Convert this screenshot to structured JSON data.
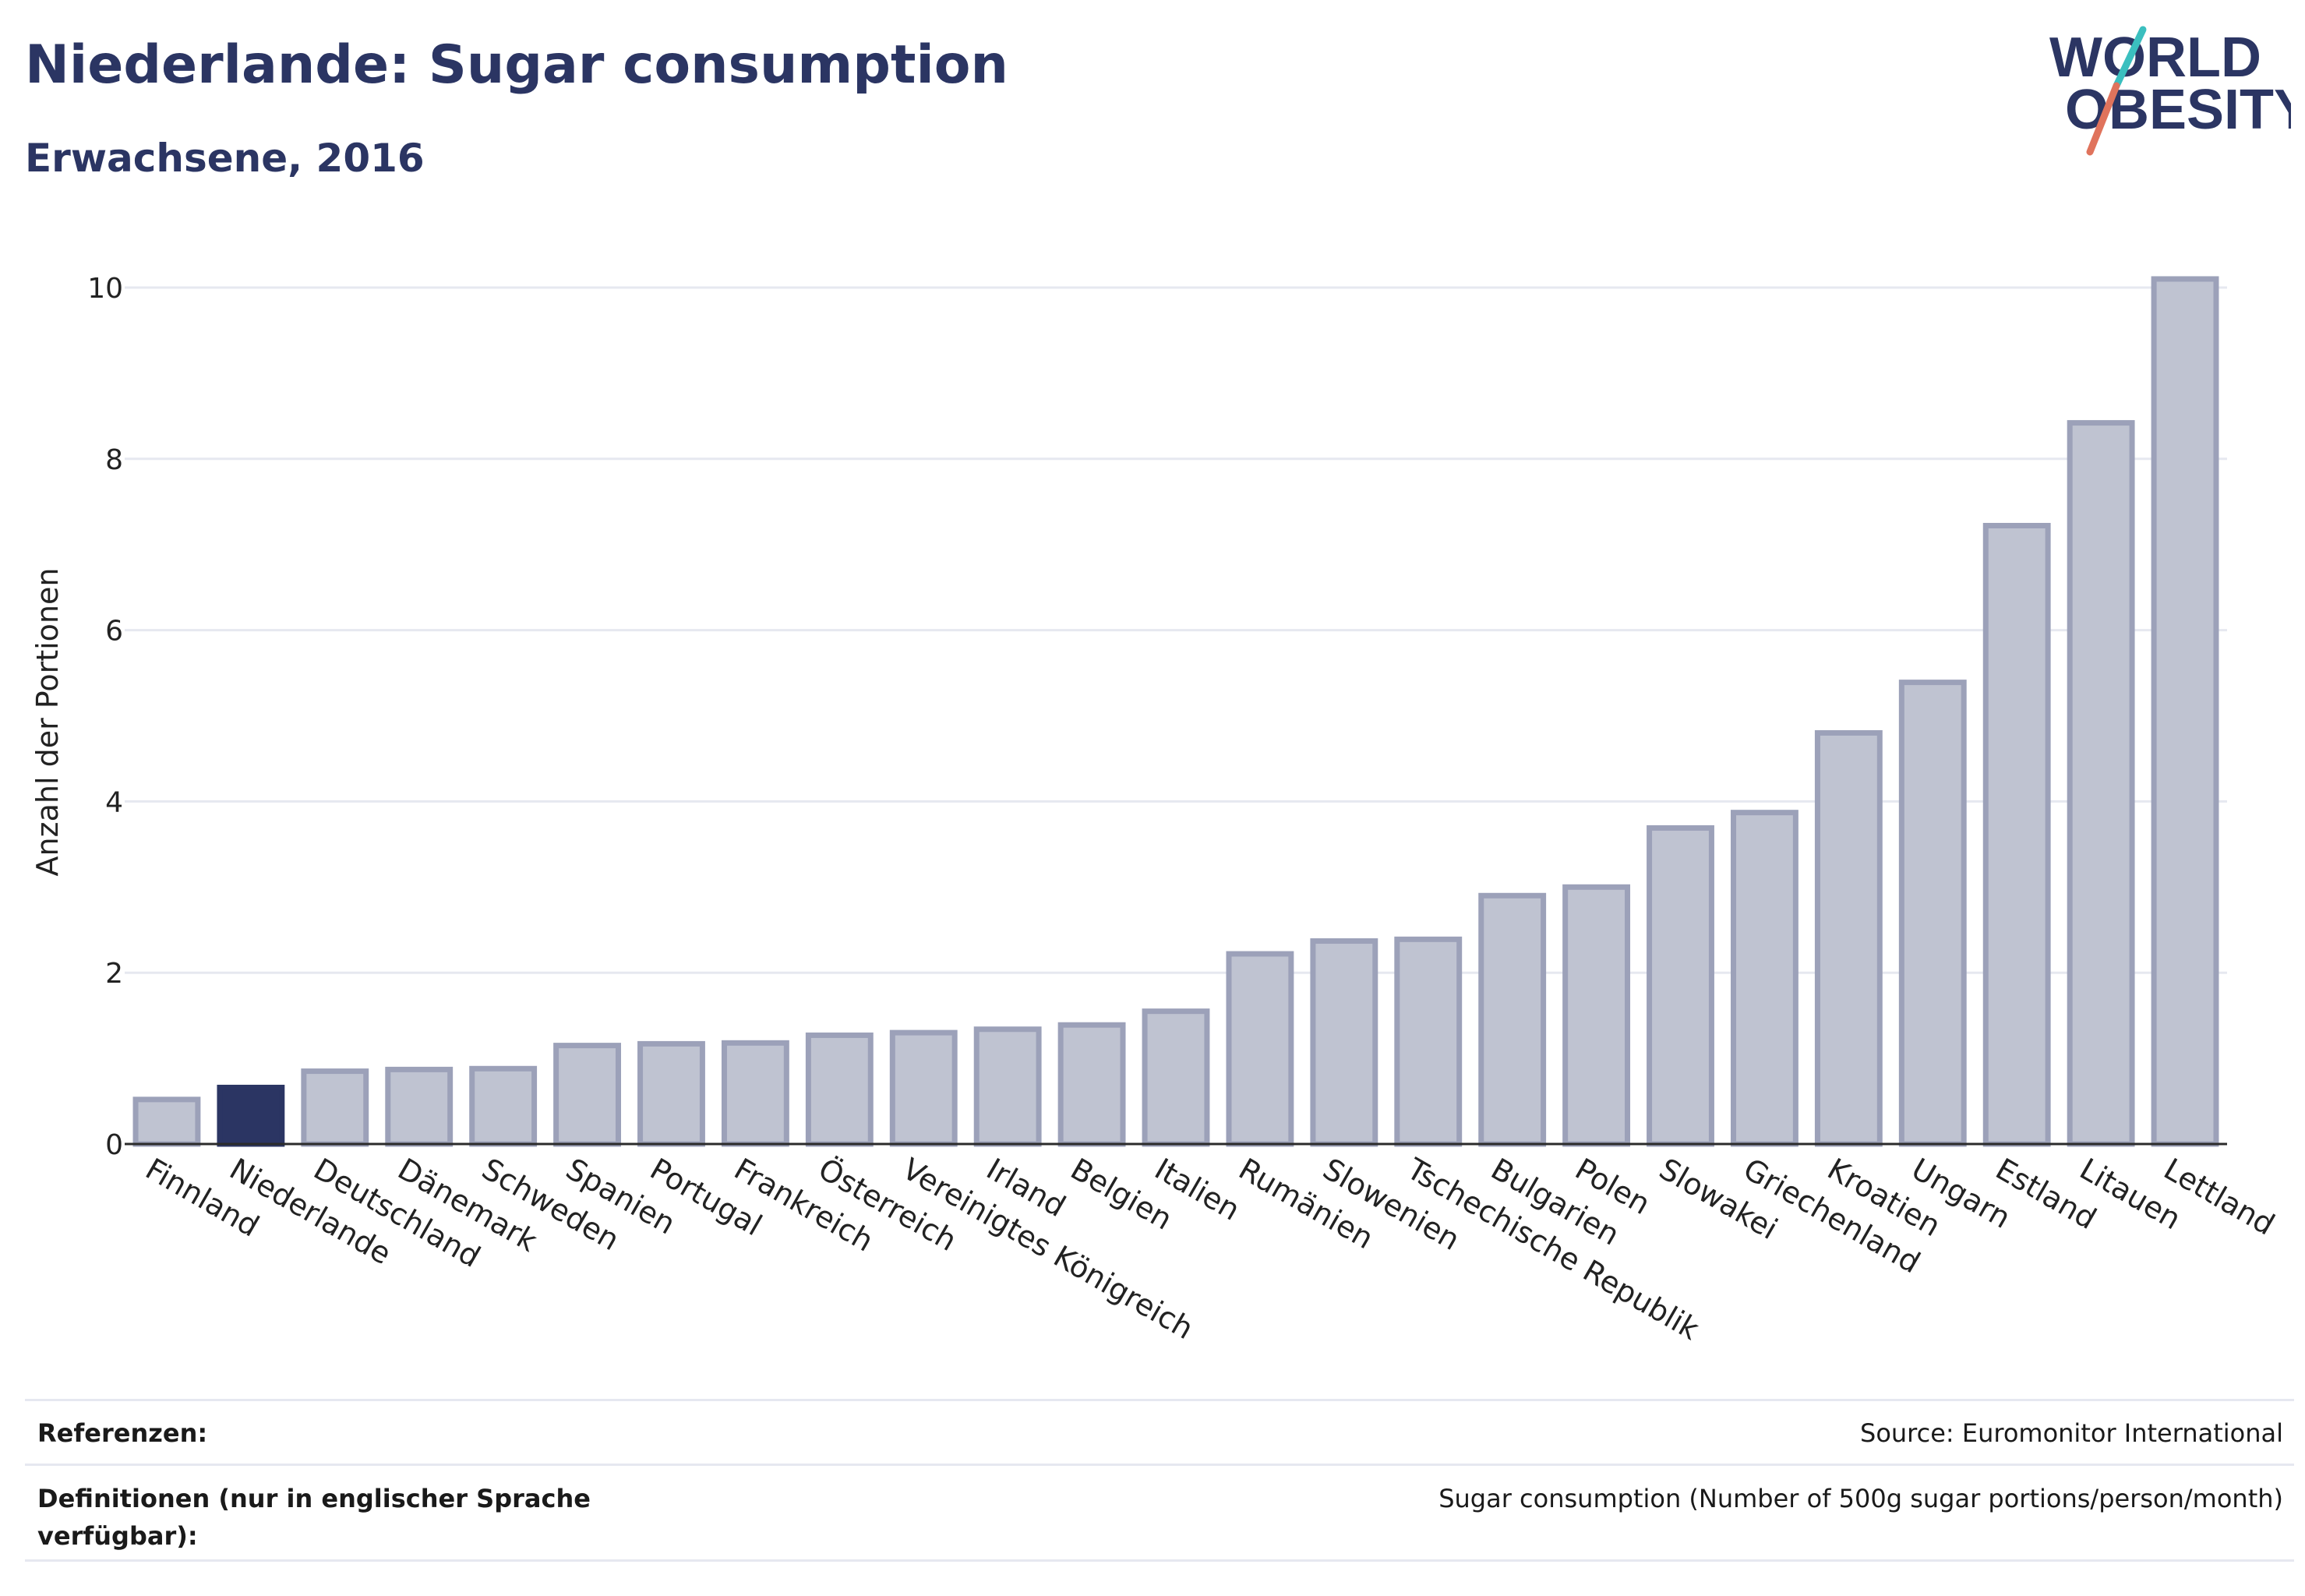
{
  "header": {
    "title": "Niederlande: Sugar consumption",
    "subtitle": "Erwachsene, 2016"
  },
  "logo": {
    "line1": "WORLD",
    "line2": "OBESITY"
  },
  "colors": {
    "highlight": "#2b3563",
    "bar_fill": "#bfc3d1",
    "bar_stroke": "#9ca1b9",
    "grid": "#e6e8f0",
    "accent_teal": "#3bbfbf",
    "accent_coral": "#e0735c"
  },
  "chart_data": {
    "type": "bar",
    "ylabel": "Anzahl der Portionen",
    "ylim": [
      0,
      10.4
    ],
    "yticks": [
      0,
      2,
      4,
      6,
      8,
      10
    ],
    "highlight": "Niederlande",
    "categories": [
      "Finnland",
      "Niederlande",
      "Deutschland",
      "Dänemark",
      "Schweden",
      "Spanien",
      "Portugal",
      "Frankreich",
      "Österreich",
      "Vereinigtes Königreich",
      "Irland",
      "Belgien",
      "Italien",
      "Rumänien",
      "Slowenien",
      "Tschechische Republik",
      "Bulgarien",
      "Polen",
      "Slowakei",
      "Griechenland",
      "Kroatien",
      "Ungarn",
      "Estland",
      "Litauen",
      "Lettland"
    ],
    "values": [
      0.52,
      0.66,
      0.85,
      0.87,
      0.88,
      1.15,
      1.17,
      1.18,
      1.27,
      1.3,
      1.34,
      1.39,
      1.55,
      2.22,
      2.37,
      2.39,
      2.9,
      3.0,
      3.69,
      3.87,
      4.8,
      5.39,
      7.22,
      8.42,
      10.1
    ]
  },
  "footer": {
    "references_label": "Referenzen:",
    "references_value": "Source: Euromonitor International",
    "definitions_label": "Definitionen (nur in englischer Sprache verfügbar):",
    "definitions_value": "Sugar consumption (Number of 500g sugar portions/person/month)"
  }
}
